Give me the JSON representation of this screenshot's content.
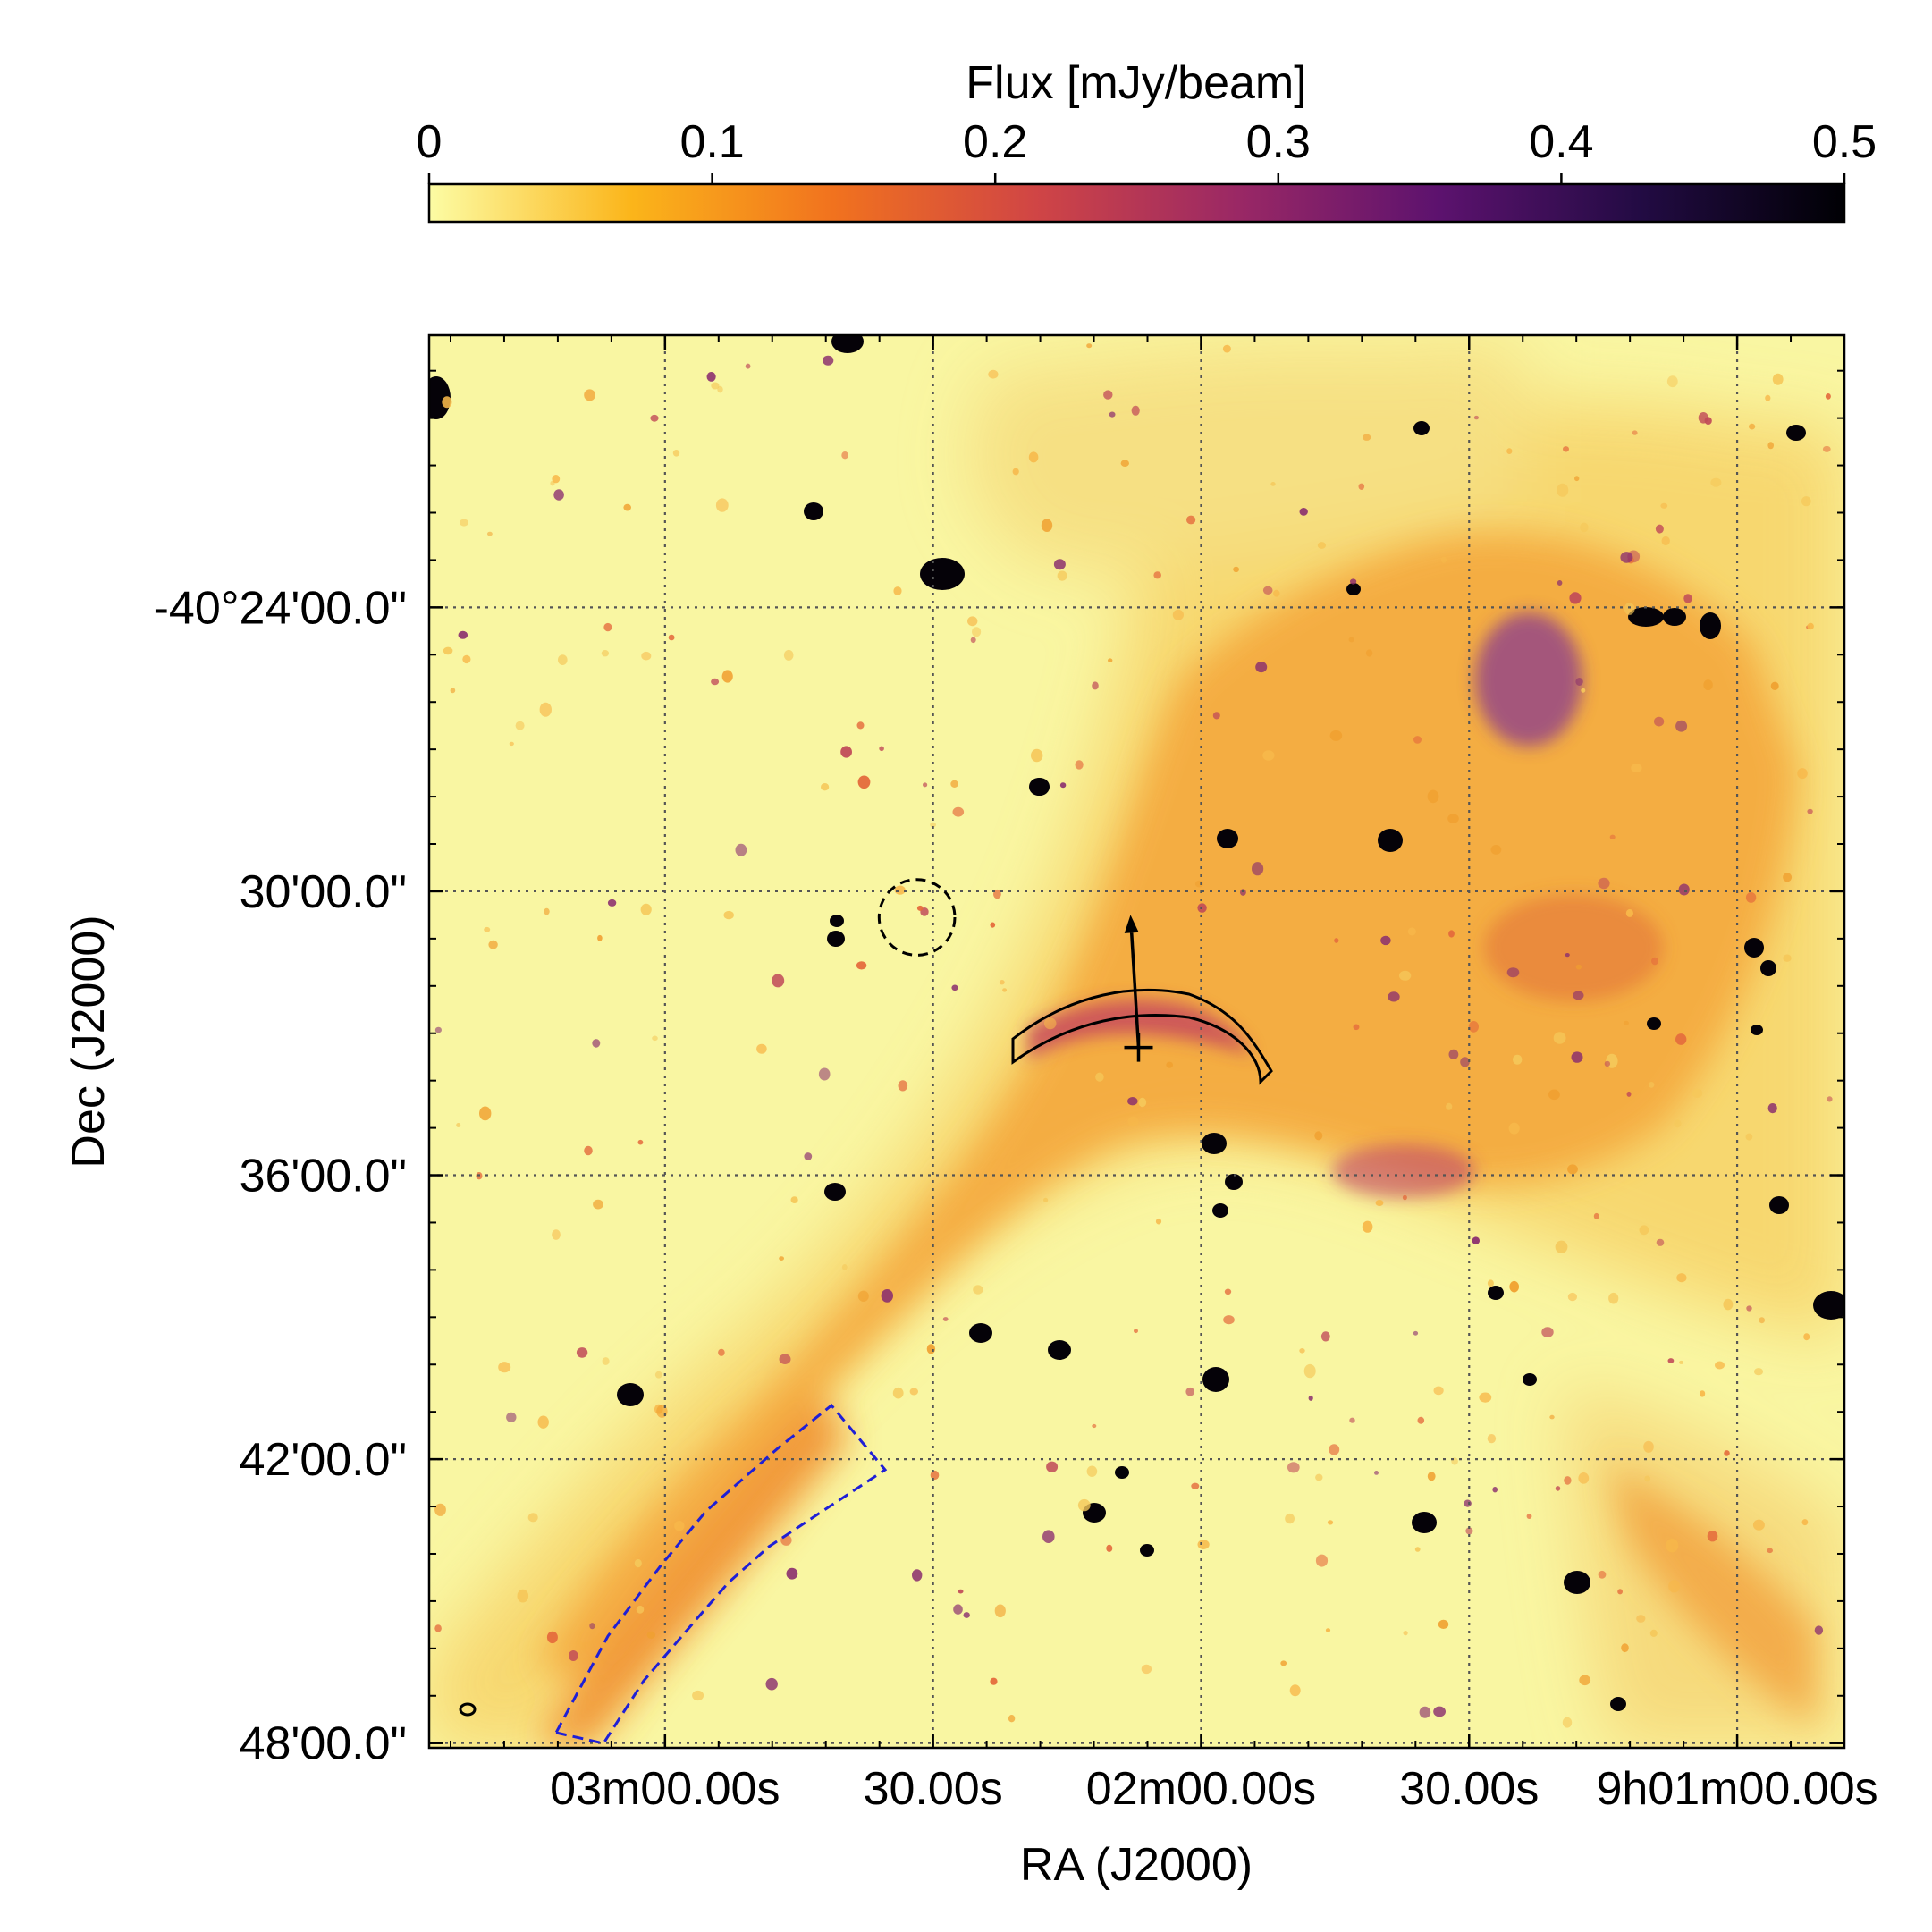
{
  "chart_data": {
    "type": "heatmap",
    "title": "",
    "colorbar": {
      "label": "Flux [mJy/beam]",
      "range": [
        0,
        0.5
      ],
      "ticks": [
        0,
        0.1,
        0.2,
        0.3,
        0.4,
        0.5
      ],
      "tick_labels": [
        "0",
        "0.1",
        "0.2",
        "0.3",
        "0.4",
        "0.5"
      ],
      "colormap": "inferno_r",
      "stops": [
        "#fcfca4",
        "#fbb51a",
        "#f1721e",
        "#d04545",
        "#9a2865",
        "#5c126e",
        "#220b43",
        "#000004"
      ],
      "placement": "top"
    },
    "xaxis": {
      "label": "RA (J2000)",
      "ticks": [
        {
          "value_s": 180,
          "label": "03m00.00s"
        },
        {
          "value_s": 150,
          "label": "30.00s"
        },
        {
          "value_s": 120,
          "label": "02m00.00s"
        },
        {
          "value_s": 90,
          "label": "30.00s"
        },
        {
          "value_s": 60,
          "label": "9h01m00.00s"
        }
      ],
      "range_s": [
        206.4,
        48
      ]
    },
    "yaxis": {
      "label": "Dec (J2000)",
      "ticks": [
        {
          "value_min": 24,
          "label": "-40°24'00.0\""
        },
        {
          "value_min": 30,
          "label": "30'00.0\""
        },
        {
          "value_min": 36,
          "label": "36'00.0\""
        },
        {
          "value_min": 42,
          "label": "42'00.0\""
        },
        {
          "value_min": 48,
          "label": "48'00.0\""
        }
      ],
      "range_min": [
        18.25,
        48.1
      ]
    },
    "grid": true,
    "grid_style": "dotted",
    "overlays": {
      "dashed_circle": {
        "ra_s": 151.8,
        "dec_min": 30.55,
        "radius_min": 0.8
      },
      "cross_marker": {
        "ra_s": 127.0,
        "dec_min": 33.3
      },
      "arrow": {
        "from": {
          "ra_s": 127.0,
          "dec_min": 33.3
        },
        "to": {
          "ra_s": 127.9,
          "dec_min": 30.5
        }
      },
      "arc_region": {
        "color": "#000000",
        "style": "solid"
      },
      "polygon_region": {
        "color": "#1f1fd6",
        "style": "dashed"
      },
      "beam_ellipse": {
        "color": "#000000"
      }
    },
    "emission": {
      "bright_region": "north-east ridge and central arc",
      "faint_region": "south-west filament",
      "background_level": 0.0
    }
  }
}
